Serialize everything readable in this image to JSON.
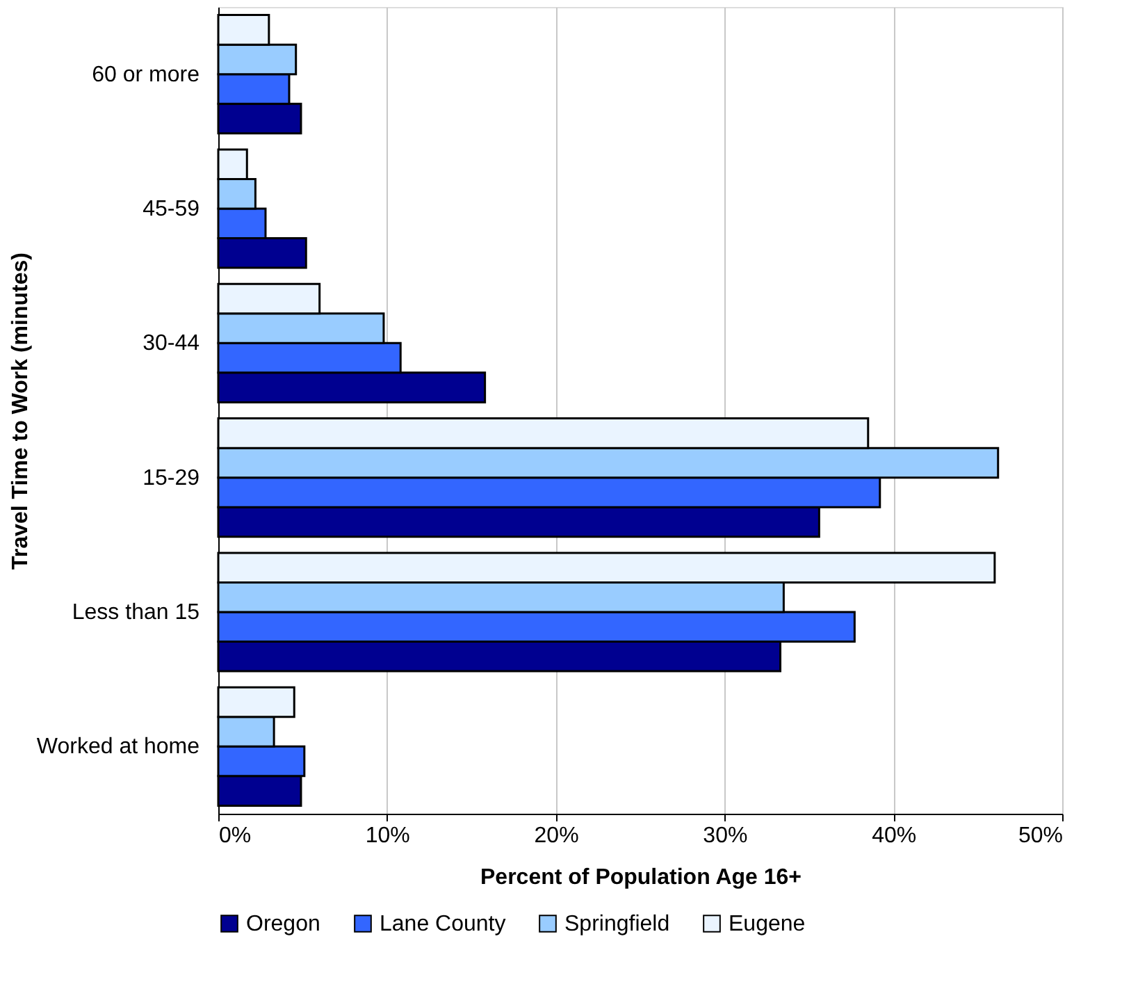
{
  "chart_data": {
    "type": "bar",
    "orientation": "horizontal",
    "xlabel": "Percent of Population Age 16+",
    "ylabel": "Travel Time to Work (minutes)",
    "categories": [
      "60 or more",
      "45-59",
      "30-44",
      "15-29",
      "Less than 15",
      "Worked at home"
    ],
    "series": [
      {
        "name": "Oregon",
        "color": "#000090",
        "values": [
          4.9,
          5.2,
          15.8,
          35.6,
          33.3,
          4.9
        ]
      },
      {
        "name": "Lane County",
        "color": "#3366ff",
        "values": [
          4.2,
          2.8,
          10.8,
          39.2,
          37.7,
          5.1
        ]
      },
      {
        "name": "Springfield",
        "color": "#99ccff",
        "values": [
          4.6,
          2.2,
          9.8,
          46.2,
          33.5,
          3.3
        ]
      },
      {
        "name": "Eugene",
        "color": "#eaf4ff",
        "values": [
          3.0,
          1.7,
          6.0,
          38.5,
          46.0,
          4.5
        ]
      }
    ],
    "xlim": [
      0,
      50
    ],
    "xticks": [
      {
        "value": 0,
        "label": "0%"
      },
      {
        "value": 10,
        "label": "10%"
      },
      {
        "value": 20,
        "label": "20%"
      },
      {
        "value": 30,
        "label": "30%"
      },
      {
        "value": 40,
        "label": "40%"
      },
      {
        "value": 50,
        "label": "50%"
      }
    ],
    "grid": "x",
    "legend": "bottom"
  }
}
